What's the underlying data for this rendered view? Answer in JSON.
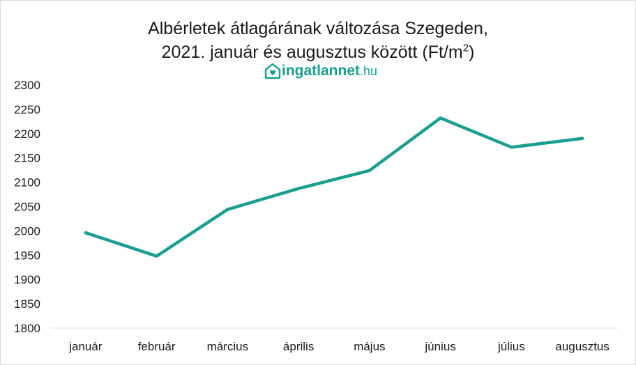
{
  "title_line1": "Albérletek átlagárának változása Szegeden,",
  "title_line2_main": "2021. január és augusztus között (Ft/m",
  "title_sup": "2",
  "title_close": ")",
  "logo": {
    "name": "ingatlannet",
    "domain": ".hu",
    "icon": "house-heart-icon",
    "color": "#1a9e8f"
  },
  "chart_data": {
    "type": "line",
    "title": "Albérletek átlagárának változása Szegeden, 2021. január és augusztus között (Ft/m2)",
    "xlabel": "",
    "ylabel": "",
    "categories": [
      "január",
      "február",
      "március",
      "április",
      "május",
      "június",
      "július",
      "augusztus"
    ],
    "series": [
      {
        "values": [
          1996,
          1948,
          2044,
          2087,
          2124,
          2232,
          2172,
          2190
        ],
        "color": "#1a9e8f"
      }
    ],
    "ylim": [
      1800,
      2300
    ],
    "yticks": [
      1800,
      1850,
      1900,
      1950,
      2000,
      2050,
      2100,
      2150,
      2200,
      2250,
      2300
    ],
    "grid": false,
    "legend": "none"
  }
}
